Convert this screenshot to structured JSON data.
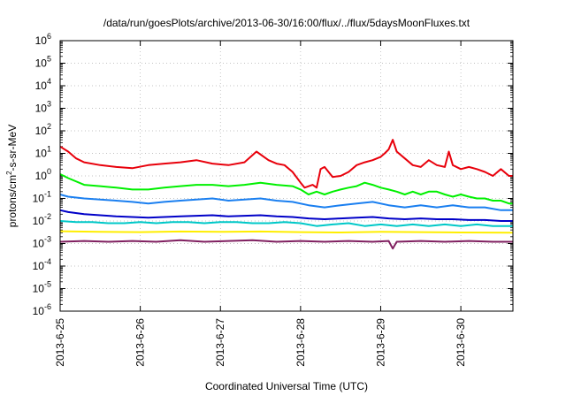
{
  "chart_data": {
    "type": "line",
    "title": "/data/run/goesPlots/archive/2013-06-30/16:00/flux/../flux/5daysMoonFluxes.txt",
    "xlabel": "Coordinated Universal Time (UTC)",
    "ylabel": {
      "pre": "protons/cm",
      "sup": "2",
      "post": "-s-sr-MeV"
    },
    "yscale": "log",
    "ylim_exp": [
      -6,
      6
    ],
    "ytick_exps": [
      -6,
      -5,
      -4,
      -3,
      -2,
      -1,
      0,
      1,
      2,
      3,
      4,
      5,
      6
    ],
    "xlim_days": [
      0,
      5.65
    ],
    "xticks": [
      {
        "day": 0,
        "label": "2013-6-25"
      },
      {
        "day": 1,
        "label": "2013-6-26"
      },
      {
        "day": 2,
        "label": "2013-6-27"
      },
      {
        "day": 3,
        "label": "2013-6-28"
      },
      {
        "day": 4,
        "label": "2013-6-29"
      },
      {
        "day": 5,
        "label": "2013-6-30"
      }
    ],
    "grid": true,
    "series": [
      {
        "color": "#e8000b",
        "x": [
          0,
          0.1,
          0.2,
          0.3,
          0.5,
          0.7,
          0.9,
          1.1,
          1.3,
          1.5,
          1.7,
          1.9,
          2.1,
          2.3,
          2.45,
          2.6,
          2.7,
          2.8,
          2.9,
          3.0,
          3.05,
          3.15,
          3.2,
          3.25,
          3.3,
          3.4,
          3.5,
          3.6,
          3.7,
          3.8,
          3.9,
          4.0,
          4.05,
          4.1,
          4.15,
          4.2,
          4.3,
          4.4,
          4.5,
          4.6,
          4.7,
          4.8,
          4.85,
          4.9,
          5.0,
          5.1,
          5.2,
          5.3,
          5.4,
          5.5,
          5.6,
          5.65
        ],
        "y": [
          20,
          12,
          6,
          4,
          3,
          2.5,
          2.2,
          3,
          3.5,
          4,
          5,
          3.5,
          3,
          4,
          12,
          5,
          3.5,
          3,
          1.5,
          0.5,
          0.3,
          0.4,
          0.3,
          2,
          2.5,
          0.9,
          1.0,
          1.5,
          3,
          4,
          5,
          7,
          10,
          15,
          40,
          12,
          6,
          3,
          2.5,
          5,
          3,
          2.5,
          12,
          3,
          2,
          2.5,
          2,
          1.5,
          1,
          2,
          1.0,
          1.0
        ]
      },
      {
        "color": "#00f000",
        "x": [
          0,
          0.1,
          0.3,
          0.5,
          0.7,
          0.9,
          1.1,
          1.3,
          1.5,
          1.7,
          1.9,
          2.1,
          2.3,
          2.5,
          2.7,
          2.9,
          3.0,
          3.1,
          3.2,
          3.3,
          3.4,
          3.5,
          3.6,
          3.7,
          3.8,
          3.9,
          4.0,
          4.1,
          4.2,
          4.3,
          4.4,
          4.5,
          4.6,
          4.7,
          4.8,
          4.9,
          5.0,
          5.1,
          5.2,
          5.3,
          5.4,
          5.5,
          5.6,
          5.65
        ],
        "y": [
          1.2,
          0.8,
          0.4,
          0.35,
          0.3,
          0.25,
          0.25,
          0.3,
          0.35,
          0.4,
          0.4,
          0.35,
          0.4,
          0.5,
          0.4,
          0.35,
          0.25,
          0.15,
          0.2,
          0.15,
          0.2,
          0.25,
          0.3,
          0.35,
          0.5,
          0.4,
          0.3,
          0.25,
          0.2,
          0.15,
          0.2,
          0.15,
          0.2,
          0.2,
          0.15,
          0.12,
          0.15,
          0.12,
          0.1,
          0.1,
          0.08,
          0.08,
          0.06,
          0.06
        ]
      },
      {
        "color": "#1a7ff0",
        "x": [
          0,
          0.1,
          0.3,
          0.5,
          0.7,
          0.9,
          1.1,
          1.3,
          1.5,
          1.7,
          1.9,
          2.1,
          2.3,
          2.5,
          2.7,
          2.9,
          3.1,
          3.3,
          3.5,
          3.7,
          3.9,
          4.1,
          4.3,
          4.5,
          4.7,
          4.9,
          5.1,
          5.3,
          5.5,
          5.65
        ],
        "y": [
          0.15,
          0.12,
          0.1,
          0.09,
          0.08,
          0.07,
          0.06,
          0.07,
          0.08,
          0.09,
          0.1,
          0.08,
          0.09,
          0.1,
          0.08,
          0.07,
          0.05,
          0.04,
          0.05,
          0.06,
          0.07,
          0.05,
          0.04,
          0.05,
          0.04,
          0.05,
          0.04,
          0.04,
          0.03,
          0.03
        ]
      },
      {
        "color": "#0000c8",
        "x": [
          0,
          0.1,
          0.3,
          0.5,
          0.7,
          0.9,
          1.1,
          1.3,
          1.5,
          1.7,
          1.9,
          2.1,
          2.3,
          2.5,
          2.7,
          2.9,
          3.1,
          3.3,
          3.5,
          3.7,
          3.9,
          4.1,
          4.3,
          4.5,
          4.7,
          4.9,
          5.1,
          5.3,
          5.5,
          5.65
        ],
        "y": [
          0.03,
          0.025,
          0.02,
          0.018,
          0.016,
          0.015,
          0.014,
          0.015,
          0.016,
          0.017,
          0.018,
          0.016,
          0.017,
          0.018,
          0.016,
          0.015,
          0.013,
          0.012,
          0.013,
          0.014,
          0.015,
          0.013,
          0.012,
          0.013,
          0.012,
          0.012,
          0.011,
          0.011,
          0.01,
          0.01
        ]
      },
      {
        "color": "#00c8c8",
        "x": [
          0,
          0.2,
          0.4,
          0.6,
          0.8,
          1.0,
          1.2,
          1.4,
          1.6,
          1.8,
          2.0,
          2.2,
          2.4,
          2.6,
          2.8,
          3.0,
          3.2,
          3.4,
          3.6,
          3.8,
          4.0,
          4.2,
          4.4,
          4.6,
          4.8,
          5.0,
          5.2,
          5.4,
          5.65
        ],
        "y": [
          0.01,
          0.009,
          0.009,
          0.008,
          0.008,
          0.009,
          0.008,
          0.009,
          0.009,
          0.008,
          0.009,
          0.009,
          0.008,
          0.008,
          0.009,
          0.008,
          0.006,
          0.007,
          0.008,
          0.006,
          0.007,
          0.006,
          0.007,
          0.006,
          0.007,
          0.006,
          0.007,
          0.006,
          0.006
        ]
      },
      {
        "color": "#ffee00",
        "x": [
          0,
          0.5,
          1.0,
          1.5,
          2.0,
          2.5,
          3.0,
          3.5,
          4.0,
          4.5,
          5.0,
          5.65
        ],
        "y": [
          0.0035,
          0.0033,
          0.0032,
          0.0034,
          0.0033,
          0.0034,
          0.0032,
          0.0031,
          0.0033,
          0.0032,
          0.0031,
          0.003
        ]
      },
      {
        "color": "#802060",
        "x": [
          0,
          0.3,
          0.6,
          0.9,
          1.2,
          1.5,
          1.8,
          2.1,
          2.4,
          2.7,
          3.0,
          3.3,
          3.6,
          3.9,
          4.1,
          4.15,
          4.2,
          4.5,
          4.8,
          5.1,
          5.4,
          5.65
        ],
        "y": [
          0.0012,
          0.0013,
          0.0012,
          0.0013,
          0.0012,
          0.0014,
          0.0012,
          0.0013,
          0.0014,
          0.0012,
          0.0013,
          0.0012,
          0.0013,
          0.0012,
          0.0013,
          0.0006,
          0.0012,
          0.0013,
          0.0012,
          0.0013,
          0.0012,
          0.0012
        ]
      }
    ]
  }
}
